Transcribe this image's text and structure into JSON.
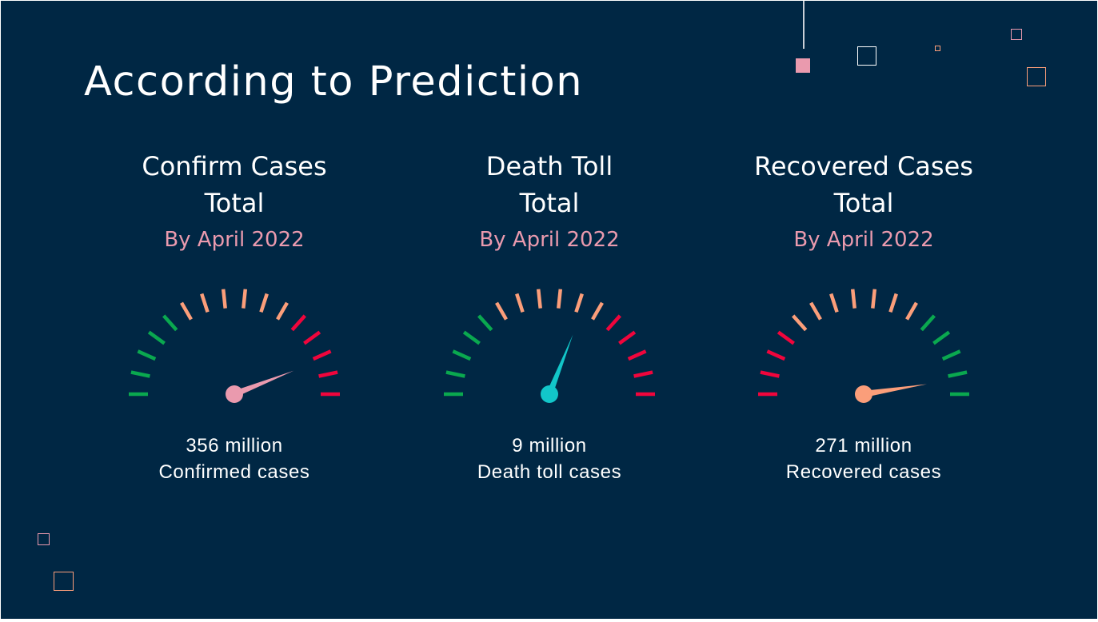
{
  "slide": {
    "title": "According to Prediction",
    "background_color": "#002744"
  },
  "colors": {
    "green": "#0aa84f",
    "orange": "#fb9e7a",
    "red": "#f0053c",
    "pink": "#ea9aae",
    "teal": "#12c6c9",
    "white": "#ffffff"
  },
  "gauges": [
    {
      "heading_line1": "Confirm Cases",
      "heading_line2": "Total",
      "subtitle": "By April 2022",
      "value_text": "356 million",
      "caption": "Confirmed cases",
      "needle_color": "#ea9aae",
      "subtitle_color": "#ea9aae",
      "needle_fraction": 0.88,
      "scale_colors": [
        "green",
        "green",
        "green",
        "green",
        "green",
        "orange",
        "orange",
        "orange",
        "orange",
        "orange",
        "orange",
        "red",
        "red",
        "red",
        "red",
        "red"
      ]
    },
    {
      "heading_line1": "Death Toll",
      "heading_line2": "Total",
      "subtitle": "By April 2022",
      "value_text": "9 million",
      "caption": "Death toll cases",
      "needle_color": "#12c6c9",
      "subtitle_color": "#ea9aae",
      "needle_fraction": 0.62,
      "scale_colors": [
        "green",
        "green",
        "green",
        "green",
        "green",
        "orange",
        "orange",
        "orange",
        "orange",
        "orange",
        "orange",
        "red",
        "red",
        "red",
        "red",
        "red"
      ]
    },
    {
      "heading_line1": "Recovered Cases",
      "heading_line2": "Total",
      "subtitle": "By April 2022",
      "value_text": "271 million",
      "caption": "Recovered cases",
      "needle_color": "#fb9e7a",
      "subtitle_color": "#ea9aae",
      "needle_fraction": 0.95,
      "scale_colors": [
        "red",
        "red",
        "red",
        "red",
        "orange",
        "orange",
        "orange",
        "orange",
        "orange",
        "orange",
        "orange",
        "green",
        "green",
        "green",
        "green",
        "green"
      ]
    }
  ],
  "decorations": [
    {
      "name": "square-pink-filled",
      "color": "#ea9aae",
      "filled": true
    },
    {
      "name": "square-white-outline",
      "color": "#ffffff",
      "filled": false
    },
    {
      "name": "square-small-orange-outline",
      "color": "#fb9e7a",
      "filled": false
    },
    {
      "name": "square-pink-outline",
      "color": "#ea9aae",
      "filled": false
    },
    {
      "name": "square-orange-outline",
      "color": "#fb9e7a",
      "filled": false
    },
    {
      "name": "square-pink-outline-bottom",
      "color": "#ea9aae",
      "filled": false
    },
    {
      "name": "square-orange-outline-bottom",
      "color": "#fb9e7a",
      "filled": false
    }
  ]
}
